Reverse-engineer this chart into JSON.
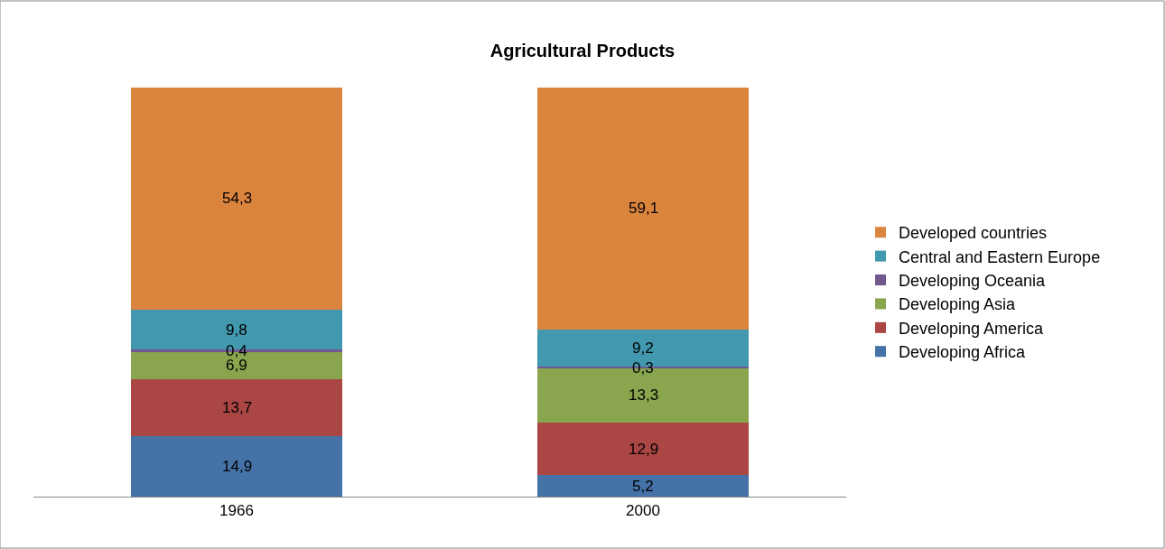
{
  "chart_data": {
    "type": "bar",
    "title": "Agricultural Products",
    "stacked": true,
    "legend": "right",
    "categories": [
      "1966",
      "2000"
    ],
    "series": [
      {
        "name": "Developing Africa",
        "color": "#4572a7",
        "values": [
          14.9,
          5.2
        ],
        "value_labels": [
          "14,9",
          "5,2"
        ]
      },
      {
        "name": "Developing America",
        "color": "#aa4643",
        "values": [
          13.7,
          12.9
        ],
        "value_labels": [
          "13,7",
          "12,9"
        ]
      },
      {
        "name": "Developing Asia",
        "color": "#89a54e",
        "values": [
          6.9,
          13.3
        ],
        "value_labels": [
          "6,9",
          "13,3"
        ]
      },
      {
        "name": "Developing Oceania",
        "color": "#71588f",
        "values": [
          0.4,
          0.3
        ],
        "value_labels": [
          "0,4",
          "0,3"
        ]
      },
      {
        "name": "Central and Eastern Europe",
        "color": "#4198af",
        "values": [
          9.8,
          9.2
        ],
        "value_labels": [
          "9,8",
          "9,2"
        ]
      },
      {
        "name": "Developed countries",
        "color": "#db843d",
        "values": [
          54.3,
          59.1
        ],
        "value_labels": [
          "54,3",
          "59,1"
        ]
      }
    ]
  }
}
